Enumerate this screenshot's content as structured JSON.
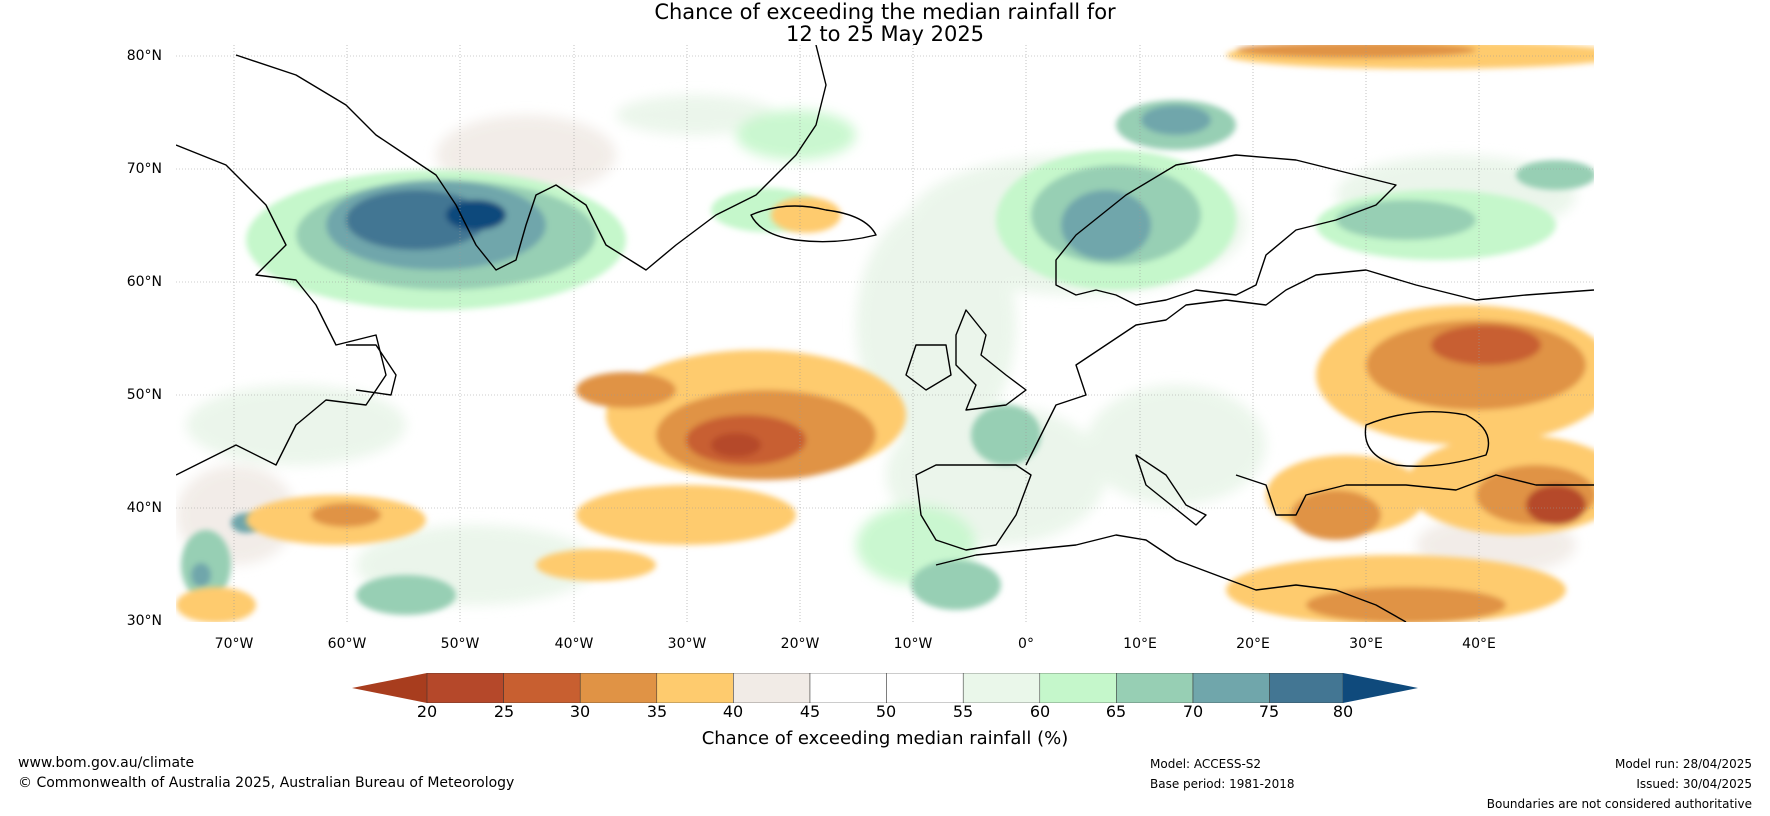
{
  "title": {
    "line1": "Chance of exceeding the median rainfall for",
    "line2": "12 to 25 May 2025"
  },
  "map": {
    "lat_labels": [
      "80°N",
      "70°N",
      "60°N",
      "50°N",
      "40°N",
      "30°N"
    ],
    "lon_labels": [
      "70°W",
      "60°W",
      "50°W",
      "40°W",
      "30°W",
      "20°W",
      "10°W",
      "0°",
      "10°E",
      "20°E",
      "30°E",
      "40°E"
    ],
    "lat_range": [
      30,
      81
    ],
    "lon_range": [
      -75,
      50
    ]
  },
  "colorbar": {
    "ticks": [
      "20",
      "25",
      "30",
      "35",
      "40",
      "45",
      "50",
      "55",
      "60",
      "65",
      "70",
      "75",
      "80"
    ],
    "colors": [
      "#a83d1e",
      "#b5482a",
      "#c85f30",
      "#e09345",
      "#fecb6e",
      "#f1ebe6",
      "#ffffff",
      "#ffffff",
      "#eaf7ea",
      "#c5f7cb",
      "#97cfb4",
      "#70a6ab",
      "#437693",
      "#0f4a7c"
    ],
    "label": "Chance of exceeding median rainfall (%)"
  },
  "footer": {
    "site": "www.bom.gov.au/climate",
    "copyright": "© Commonwealth of Australia 2025, Australian Bureau of Meteorology",
    "model": "Model: ACCESS-S2",
    "base_period": "Base period: 1981-2018",
    "model_run": "Model run: 28/04/2025",
    "issued": "Issued: 30/04/2025",
    "disclaimer": "Boundaries are not considered authoritative"
  }
}
